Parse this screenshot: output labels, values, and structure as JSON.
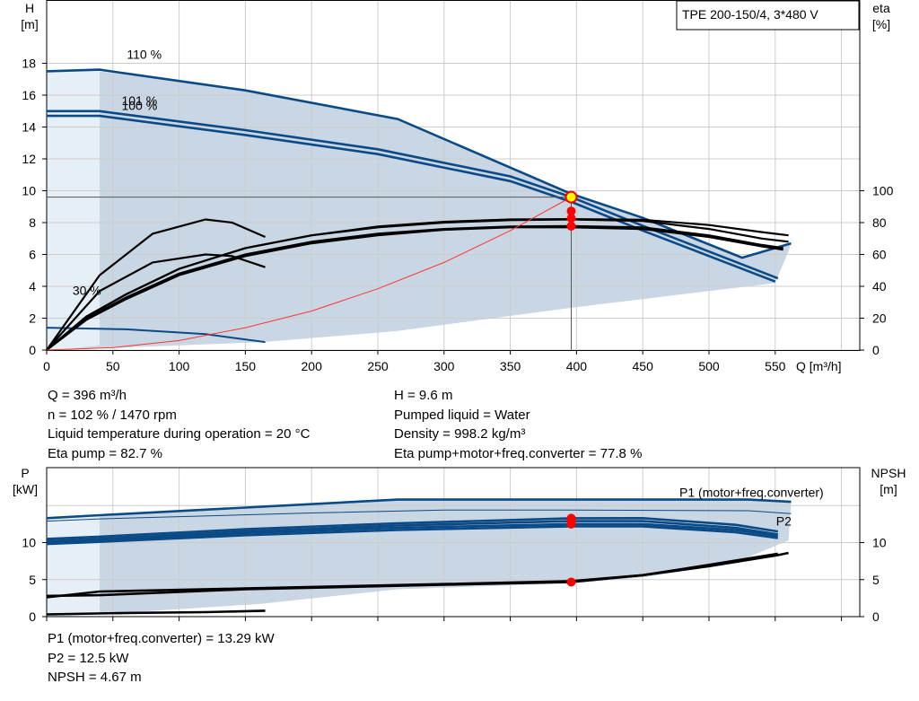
{
  "chart_data": [
    {
      "type": "line",
      "title": "TPE 200-150/4, 3*480 V",
      "xlabel": "Q [m³/h]",
      "ylabel_left": "H\n[m]",
      "ylabel_right": "eta\n[%]",
      "xlim": [
        0,
        600
      ],
      "ylim_left": [
        0,
        20
      ],
      "ylim_right": [
        0,
        220
      ],
      "x_ticks": [
        "0",
        "50",
        "100",
        "150",
        "200",
        "250",
        "300",
        "350",
        "400",
        "450",
        "500",
        "550"
      ],
      "y_ticks_left": [
        "0",
        "2",
        "4",
        "6",
        "8",
        "10",
        "12",
        "14",
        "16",
        "18"
      ],
      "y_ticks_right": [
        "0",
        "20",
        "40",
        "60",
        "80",
        "100"
      ],
      "grid": true,
      "curve_labels": [
        {
          "text": "110 %",
          "x": 47,
          "y": 18.1
        },
        {
          "text": "101 %",
          "x": 43,
          "y": 15.2
        },
        {
          "text": "100 %",
          "x": 43,
          "y": 14.9
        },
        {
          "text": "30 %",
          "x": 6,
          "y": 3.3
        }
      ],
      "operating_region": {
        "upper": [
          [
            0,
            17.5
          ],
          [
            30,
            17.6
          ],
          [
            150,
            16.3
          ],
          [
            265,
            14.5
          ],
          [
            396,
            9.8
          ],
          [
            450,
            8.3
          ],
          [
            525,
            5.8
          ],
          [
            562,
            6.7
          ]
        ],
        "lower": [
          [
            560,
            6.2
          ],
          [
            550,
            4.2
          ],
          [
            450,
            3.2
          ],
          [
            400,
            2.7
          ],
          [
            265,
            1.2
          ],
          [
            163,
            0.5
          ],
          [
            10,
            0
          ]
        ]
      },
      "series": [
        {
          "name": "110 %",
          "kind": "head",
          "points": [
            [
              0,
              17.5
            ],
            [
              40,
              17.6
            ],
            [
              150,
              16.3
            ],
            [
              265,
              14.5
            ],
            [
              396,
              9.8
            ],
            [
              450,
              8.3
            ],
            [
              525,
              5.8
            ],
            [
              562,
              6.7
            ]
          ]
        },
        {
          "name": "101 %",
          "kind": "head",
          "points": [
            [
              0,
              15.0
            ],
            [
              40,
              15.0
            ],
            [
              150,
              13.8
            ],
            [
              250,
              12.6
            ],
            [
              350,
              10.9
            ],
            [
              396,
              9.6
            ],
            [
              450,
              7.8
            ],
            [
              552,
              4.5
            ]
          ]
        },
        {
          "name": "100 %",
          "kind": "head",
          "points": [
            [
              0,
              14.7
            ],
            [
              40,
              14.7
            ],
            [
              150,
              13.5
            ],
            [
              250,
              12.3
            ],
            [
              350,
              10.6
            ],
            [
              396,
              9.3
            ],
            [
              450,
              7.5
            ],
            [
              550,
              4.3
            ]
          ]
        },
        {
          "name": "30 %",
          "kind": "head",
          "points": [
            [
              0,
              1.4
            ],
            [
              60,
              1.3
            ],
            [
              120,
              1.0
            ],
            [
              165,
              0.5
            ]
          ]
        },
        {
          "kind": "eta",
          "points": [
            [
              0,
              0
            ],
            [
              30,
              21
            ],
            [
              60,
              35
            ],
            [
              100,
              51
            ],
            [
              150,
              64
            ],
            [
              200,
              72
            ],
            [
              250,
              77
            ],
            [
              300,
              80
            ],
            [
              350,
              81.5
            ],
            [
              396,
              82
            ],
            [
              450,
              81
            ],
            [
              500,
              76
            ],
            [
              540,
              70
            ],
            [
              560,
              68
            ]
          ]
        },
        {
          "kind": "eta",
          "points": [
            [
              0,
              0
            ],
            [
              30,
              20
            ],
            [
              60,
              33
            ],
            [
              100,
              48
            ],
            [
              150,
              60
            ],
            [
              200,
              68
            ],
            [
              250,
              73
            ],
            [
              300,
              76
            ],
            [
              350,
              77.5
            ],
            [
              396,
              77.8
            ],
            [
              450,
              77
            ],
            [
              500,
              72
            ],
            [
              540,
              66
            ],
            [
              556,
              64
            ]
          ]
        },
        {
          "kind": "eta",
          "points": [
            [
              0,
              0
            ],
            [
              30,
              19
            ],
            [
              60,
              32
            ],
            [
              100,
              47
            ],
            [
              150,
              59
            ],
            [
              200,
              67
            ],
            [
              250,
              72
            ],
            [
              300,
              75.5
            ],
            [
              350,
              77
            ],
            [
              396,
              77
            ],
            [
              450,
              76
            ],
            [
              500,
              71
            ],
            [
              540,
              65
            ],
            [
              556,
              63
            ]
          ]
        },
        {
          "kind": "eta",
          "points": [
            [
              0,
              0
            ],
            [
              40,
              37
            ],
            [
              80,
              55
            ],
            [
              120,
              60
            ],
            [
              140,
              59
            ],
            [
              165,
              52
            ]
          ]
        },
        {
          "kind": "eta",
          "points": [
            [
              0,
              0
            ],
            [
              30,
              21
            ],
            [
              60,
              35
            ],
            [
              100,
              51
            ],
            [
              150,
              64
            ],
            [
              200,
              72
            ],
            [
              250,
              77.5
            ],
            [
              300,
              80.5
            ],
            [
              350,
              82
            ],
            [
              396,
              82.2
            ],
            [
              450,
              81.8
            ],
            [
              500,
              78.5
            ],
            [
              540,
              74
            ],
            [
              560,
              72
            ]
          ]
        },
        {
          "kind": "eta",
          "points": [
            [
              0,
              0
            ],
            [
              40,
              47
            ],
            [
              80,
              73
            ],
            [
              120,
              82
            ],
            [
              140,
              80
            ],
            [
              165,
              71
            ]
          ]
        },
        {
          "kind": "system",
          "points": [
            [
              0,
              0
            ],
            [
              50,
              0.15
            ],
            [
              100,
              0.6
            ],
            [
              150,
              1.4
            ],
            [
              200,
              2.45
            ],
            [
              250,
              3.85
            ],
            [
              300,
              5.5
            ],
            [
              350,
              7.5
            ],
            [
              396,
              9.6
            ]
          ]
        }
      ],
      "operating_point": {
        "x": 396,
        "y": 9.6
      },
      "eta_points": [
        82.7,
        77.8
      ]
    },
    {
      "type": "line",
      "xlabel": "",
      "ylabel_left": "P\n[kW]",
      "ylabel_right": "NPSH\n[m]",
      "xlim": [
        0,
        600
      ],
      "ylim_left": [
        0,
        17.5
      ],
      "ylim_right": [
        0,
        17.5
      ],
      "y_ticks_left": [
        "0",
        "5",
        "10"
      ],
      "y_ticks_right": [
        "0",
        "5",
        "10"
      ],
      "grid": true,
      "series_labels": [
        {
          "text": "P1 (motor+freq.converter)",
          "x": 477,
          "y": 16.8
        },
        {
          "text": "P2",
          "x": 550,
          "y": 12.9
        }
      ],
      "operating_region": {
        "upper": [
          [
            0,
            13.3
          ],
          [
            40,
            13.6
          ],
          [
            265,
            15.8
          ],
          [
            396,
            15.8
          ],
          [
            530,
            15.8
          ],
          [
            562,
            15.5
          ]
        ],
        "lower": [
          [
            560,
            10.3
          ],
          [
            520,
            7.3
          ],
          [
            450,
            5.3
          ],
          [
            396,
            4.5
          ],
          [
            265,
            3.7
          ],
          [
            160,
            1.7
          ],
          [
            10,
            0
          ]
        ]
      },
      "series": [
        {
          "name": "P1 (motor+freq.converter)",
          "points": [
            [
              0,
              13.3
            ],
            [
              40,
              13.7
            ],
            [
              265,
              15.8
            ],
            [
              396,
              15.8
            ],
            [
              530,
              15.8
            ],
            [
              562,
              15.5
            ]
          ]
        },
        {
          "points": [
            [
              0,
              12.9
            ],
            [
              40,
              13.2
            ],
            [
              200,
              14.0
            ],
            [
              300,
              14.4
            ],
            [
              396,
              14.4
            ],
            [
              530,
              14.3
            ],
            [
              562,
              13.9
            ]
          ]
        },
        {
          "points": [
            [
              0,
              10.5
            ],
            [
              40,
              10.8
            ],
            [
              150,
              11.8
            ],
            [
              265,
              12.6
            ],
            [
              396,
              13.29
            ],
            [
              450,
              13.3
            ],
            [
              520,
              12.4
            ],
            [
              552,
              11.5
            ]
          ]
        },
        {
          "points": [
            [
              0,
              10.2
            ],
            [
              40,
              10.5
            ],
            [
              150,
              11.5
            ],
            [
              265,
              12.3
            ],
            [
              396,
              12.9
            ],
            [
              450,
              12.9
            ],
            [
              520,
              12.0
            ],
            [
              552,
              11.1
            ]
          ]
        },
        {
          "points": [
            [
              0,
              10.0
            ],
            [
              40,
              10.3
            ],
            [
              150,
              11.3
            ],
            [
              265,
              12.0
            ],
            [
              396,
              12.5
            ],
            [
              450,
              12.5
            ],
            [
              520,
              11.7
            ],
            [
              552,
              10.9
            ]
          ]
        },
        {
          "points": [
            [
              0,
              9.8
            ],
            [
              40,
              10.1
            ],
            [
              150,
              11.0
            ],
            [
              265,
              11.7
            ],
            [
              396,
              12.2
            ],
            [
              450,
              12.2
            ],
            [
              520,
              11.4
            ],
            [
              552,
              10.6
            ]
          ]
        },
        {
          "points": [
            [
              0,
              0.3
            ],
            [
              60,
              0.5
            ],
            [
              120,
              0.6
            ],
            [
              165,
              0.8
            ]
          ]
        },
        {
          "points": [
            [
              0,
              2.8
            ],
            [
              40,
              2.9
            ],
            [
              150,
              3.7
            ],
            [
              300,
              4.3
            ],
            [
              396,
              4.67
            ],
            [
              450,
              5.6
            ],
            [
              500,
              6.8
            ],
            [
              552,
              8.3
            ],
            [
              560,
              8.6
            ]
          ]
        },
        {
          "points": [
            [
              0,
              2.6
            ],
            [
              40,
              3.4
            ],
            [
              150,
              3.8
            ],
            [
              300,
              4.4
            ],
            [
              396,
              4.8
            ],
            [
              450,
              5.6
            ],
            [
              500,
              7.0
            ],
            [
              552,
              8.5
            ]
          ]
        }
      ],
      "operating_points": [
        13.29,
        12.9,
        12.5
      ],
      "npsh_point": 4.67
    }
  ],
  "readout_top": {
    "col1": [
      "Q = 396 m³/h",
      "n = 102 % / 1470 rpm",
      "Liquid temperature during operation = 20 °C",
      "Eta pump = 82.7 %"
    ],
    "col2": [
      "H = 9.6 m",
      "Pumped liquid = Water",
      "Density = 998.2 kg/m³",
      "Eta pump+motor+freq.converter = 77.8 %"
    ]
  },
  "readout_bottom": [
    "P1 (motor+freq.converter) = 13.29 kW",
    "P2 = 12.5 kW",
    "NPSH = 4.67 m"
  ],
  "colors": {
    "curve": "#0a4a86",
    "region": "#c9d6e3",
    "region_light": "#e6eef6",
    "grid": "#cccccc",
    "system": "#ff3333",
    "marker": "#ff0000",
    "op_marker": "#ffff00"
  }
}
